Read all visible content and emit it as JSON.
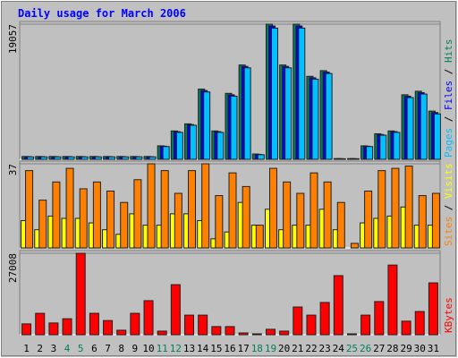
{
  "chart_data": [
    {
      "type": "bar",
      "title": "Daily usage for March 2006",
      "categories": [
        "1",
        "2",
        "3",
        "4",
        "5",
        "6",
        "7",
        "8",
        "9",
        "10",
        "11",
        "12",
        "13",
        "14",
        "15",
        "16",
        "17",
        "18",
        "19",
        "20",
        "21",
        "22",
        "23",
        "24",
        "25",
        "26",
        "27",
        "28",
        "29",
        "30",
        "31"
      ],
      "category_colors": [
        "#000000",
        "#000000",
        "#000000",
        "#00805c",
        "#00805c",
        "#000000",
        "#000000",
        "#000000",
        "#000000",
        "#000000",
        "#00805c",
        "#00805c",
        "#000000",
        "#000000",
        "#000000",
        "#000000",
        "#000000",
        "#00805c",
        "#00805c",
        "#000000",
        "#000000",
        "#000000",
        "#000000",
        "#000000",
        "#00805c",
        "#00805c",
        "#000000",
        "#000000",
        "#000000",
        "#000000",
        "#000000"
      ],
      "ylim": [
        0,
        19057
      ],
      "yticks": [
        19057
      ],
      "series": [
        {
          "name": "Hits",
          "color": "#00805c",
          "values": [
            400,
            400,
            400,
            400,
            400,
            400,
            400,
            400,
            400,
            400,
            1900,
            4000,
            5000,
            9900,
            4000,
            9300,
            13300,
            750,
            19057,
            13300,
            19057,
            11700,
            12500,
            100,
            100,
            1900,
            3600,
            4000,
            9100,
            9600,
            6800
          ]
        },
        {
          "name": "Files",
          "color": "#0000ff",
          "values": [
            380,
            380,
            380,
            380,
            380,
            380,
            380,
            380,
            380,
            380,
            1850,
            3900,
            4900,
            9700,
            3900,
            9100,
            13100,
            700,
            18800,
            13100,
            18800,
            11500,
            12300,
            90,
            90,
            1850,
            3500,
            3900,
            8900,
            9400,
            6600
          ]
        },
        {
          "name": "Pages",
          "color": "#00c0ff",
          "values": [
            350,
            350,
            350,
            350,
            350,
            350,
            350,
            350,
            350,
            350,
            1800,
            3800,
            4800,
            9500,
            3800,
            8900,
            12900,
            650,
            18500,
            12900,
            18500,
            11300,
            12100,
            80,
            80,
            1800,
            3400,
            3800,
            8700,
            9200,
            6400
          ]
        }
      ]
    },
    {
      "type": "bar",
      "ylim": [
        0,
        37
      ],
      "yticks": [
        37
      ],
      "series": [
        {
          "name": "Visits",
          "color": "#ffff00",
          "values": [
            12,
            8,
            14,
            13,
            13,
            11,
            8,
            6,
            15,
            10,
            10,
            15,
            15,
            12,
            4,
            7,
            20,
            10,
            17,
            8,
            10,
            10,
            17,
            8,
            0,
            11,
            13,
            14,
            18,
            10,
            10
          ]
        },
        {
          "name": "Sites",
          "color": "#ff8000",
          "values": [
            34,
            21,
            29,
            35,
            26,
            29,
            25,
            20,
            30,
            37,
            34,
            24,
            34,
            37,
            23,
            33,
            27,
            10,
            35,
            29,
            24,
            33,
            29,
            20,
            2,
            25,
            34,
            35,
            36,
            23,
            24
          ]
        }
      ]
    },
    {
      "type": "bar",
      "ylim": [
        0,
        27008
      ],
      "yticks": [
        27008
      ],
      "series": [
        {
          "name": "KBytes",
          "color": "#ff0000",
          "values": [
            3600,
            7100,
            3900,
            5300,
            27008,
            7100,
            4700,
            1500,
            7100,
            11300,
            1200,
            16600,
            6500,
            6500,
            2700,
            2700,
            600,
            300,
            1800,
            1200,
            9200,
            6500,
            10700,
            19600,
            300,
            6500,
            11000,
            23100,
            4500,
            7700,
            17200
          ]
        }
      ]
    }
  ]
}
